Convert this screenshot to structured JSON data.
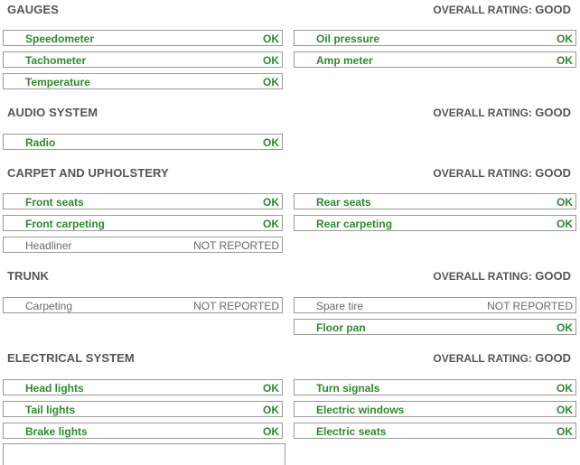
{
  "overall_label": "OVERALL RATING:",
  "sections": {
    "gauges": {
      "title": "GAUGES",
      "rating": "GOOD",
      "items": [
        {
          "label": "Speedometer",
          "status": "OK"
        },
        {
          "label": "Oil pressure",
          "status": "OK"
        },
        {
          "label": "Tachometer",
          "status": "OK"
        },
        {
          "label": "Amp meter",
          "status": "OK"
        },
        {
          "label": "Temperature",
          "status": "OK"
        }
      ]
    },
    "audio": {
      "title": "AUDIO SYSTEM",
      "rating": "GOOD",
      "items": [
        {
          "label": "Radio",
          "status": "OK"
        }
      ]
    },
    "carpet": {
      "title": "CARPET AND UPHOLSTERY",
      "rating": "GOOD",
      "items": [
        {
          "label": "Front seats",
          "status": "OK"
        },
        {
          "label": "Rear seats",
          "status": "OK"
        },
        {
          "label": "Front carpeting",
          "status": "OK"
        },
        {
          "label": "Rear carpeting",
          "status": "OK"
        },
        {
          "label": "Headliner",
          "status": "NOT REPORTED"
        }
      ]
    },
    "trunk": {
      "title": "TRUNK",
      "rating": "GOOD",
      "items": [
        {
          "label": "Carpeting",
          "status": "NOT REPORTED"
        },
        {
          "label": "Spare tire",
          "status": "NOT REPORTED"
        },
        {
          "label": "Floor pan",
          "status": "OK"
        }
      ]
    },
    "electrical": {
      "title": "ELECTRICAL SYSTEM",
      "rating": "GOOD",
      "items": [
        {
          "label": "Head lights",
          "status": "OK"
        },
        {
          "label": "Turn signals",
          "status": "OK"
        },
        {
          "label": "Tail lights",
          "status": "OK"
        },
        {
          "label": "Electric windows",
          "status": "OK"
        },
        {
          "label": "Brake lights",
          "status": "OK"
        },
        {
          "label": "Electric seats",
          "status": "OK"
        }
      ]
    }
  },
  "colors": {
    "ok": "#2d8a2d",
    "not_reported": "#6a6a6a",
    "heading": "#555555"
  }
}
